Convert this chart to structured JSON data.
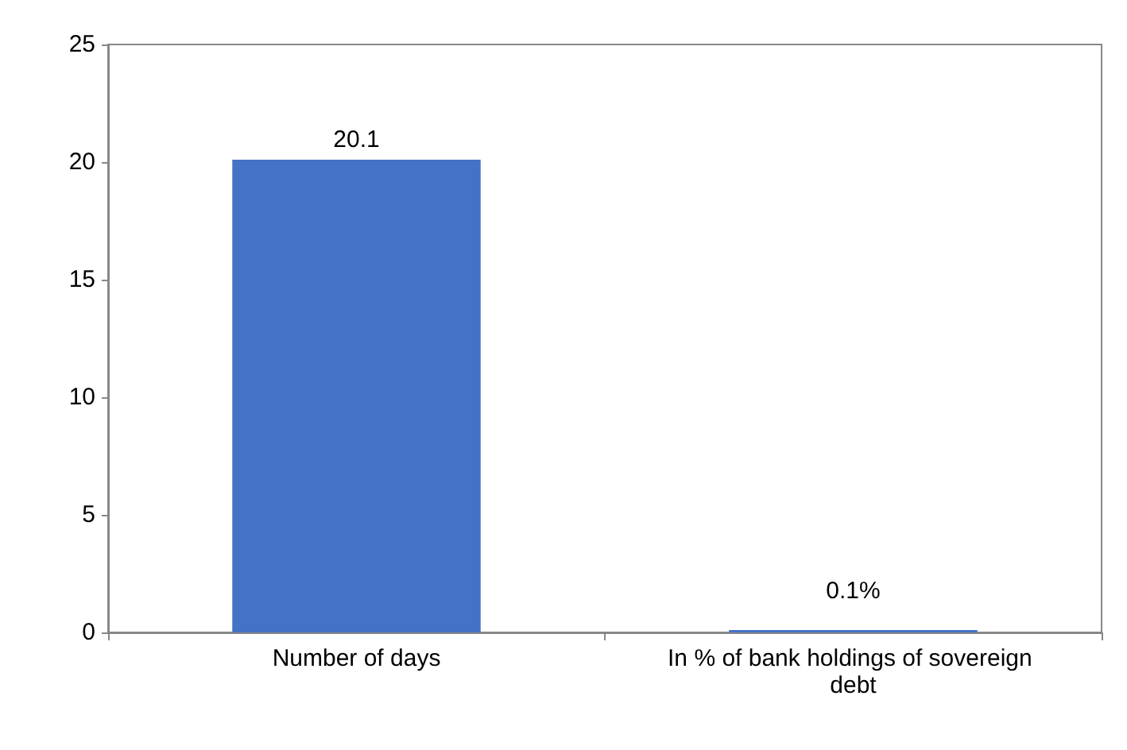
{
  "chart_data": {
    "type": "bar",
    "categories": [
      "Number of days",
      "In % of bank holdings of sovereign debt"
    ],
    "values": [
      20.1,
      0.1
    ],
    "value_labels": [
      "20.1",
      "0.1%"
    ],
    "color": "#4472c4",
    "ylim": [
      0,
      25
    ],
    "yticks": [
      0,
      5,
      10,
      15,
      20,
      25
    ],
    "grid": false
  }
}
